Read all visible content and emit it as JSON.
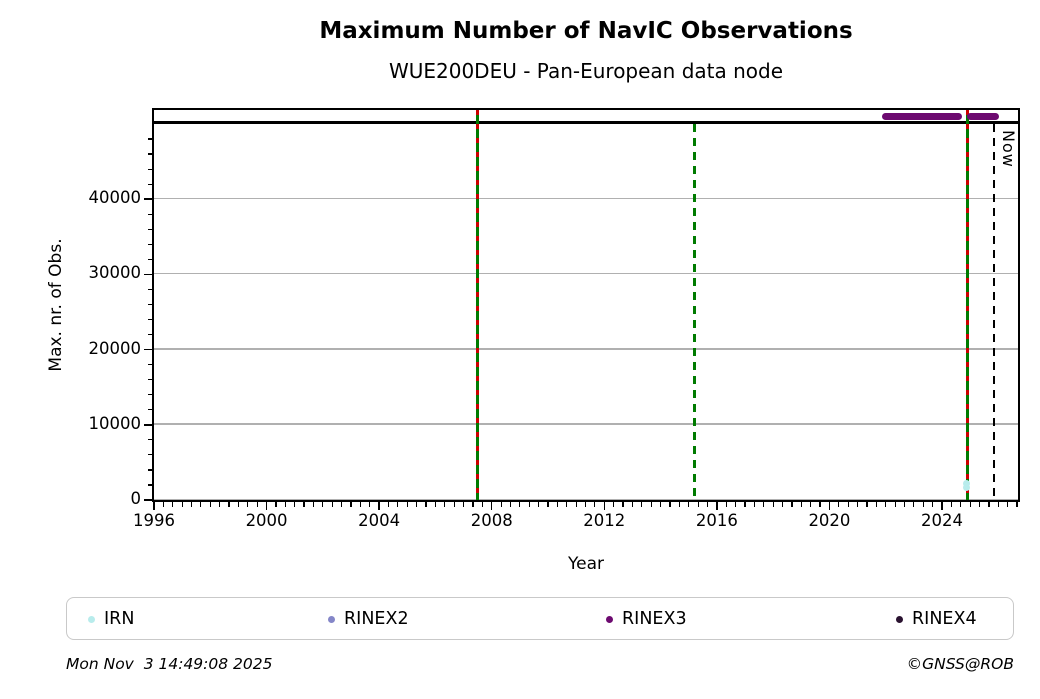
{
  "footer": {
    "timestamp": "Mon Nov  3 14:49:08 2025",
    "credit": "©GNSS@ROB"
  },
  "chart_data": {
    "type": "scatter",
    "title": "Maximum Number of NavIC Observations",
    "subtitle": "WUE200DEU - Pan-European data node",
    "xlabel": "Year",
    "ylabel": "Max. nr. of Obs.",
    "xlim": [
      1996,
      2026.7
    ],
    "ylim": [
      0,
      50000
    ],
    "x_major_ticks": [
      1996,
      2000,
      2004,
      2008,
      2012,
      2016,
      2020,
      2024
    ],
    "x_minor_ticks_per_year": 3,
    "y_major_ticks": [
      0,
      10000,
      20000,
      30000,
      40000
    ],
    "y_minor_step": 2000,
    "grid": "horizontal-major-only",
    "grid_color": "#b0b0b0",
    "legend_position": "bottom",
    "series": [
      {
        "name": "IRN",
        "color": "#b8ecec",
        "points": [
          {
            "x": 2024.88,
            "y": 1600
          },
          {
            "x": 2024.88,
            "y": 2200
          }
        ]
      },
      {
        "name": "RINEX2",
        "color": "#8486c8",
        "points": []
      },
      {
        "name": "RINEX3",
        "color": "#6d0a70",
        "points": []
      },
      {
        "name": "RINEX4",
        "color": "#2a1230",
        "points": []
      }
    ],
    "availability_bands": [
      {
        "series": "RINEX3",
        "color": "#6d0a70",
        "x_start": 2022.0,
        "x_end": 2024.6
      },
      {
        "series": "RINEX3",
        "color": "#6d0a70",
        "x_start": 2025.0,
        "x_end": 2025.9
      }
    ],
    "event_lines": [
      {
        "x": 2007.5,
        "style": "solid-green-red-dash",
        "green": "#007b00",
        "red": "#cc0000"
      },
      {
        "x": 2015.2,
        "style": "dashed-green",
        "green": "#007b00"
      },
      {
        "x": 2024.9,
        "style": "solid-green-red-dash",
        "green": "#007b00",
        "red": "#cc0000"
      }
    ],
    "now_line": {
      "x": 2025.84,
      "label": "Now",
      "color": "#000000",
      "style": "dashed"
    }
  }
}
